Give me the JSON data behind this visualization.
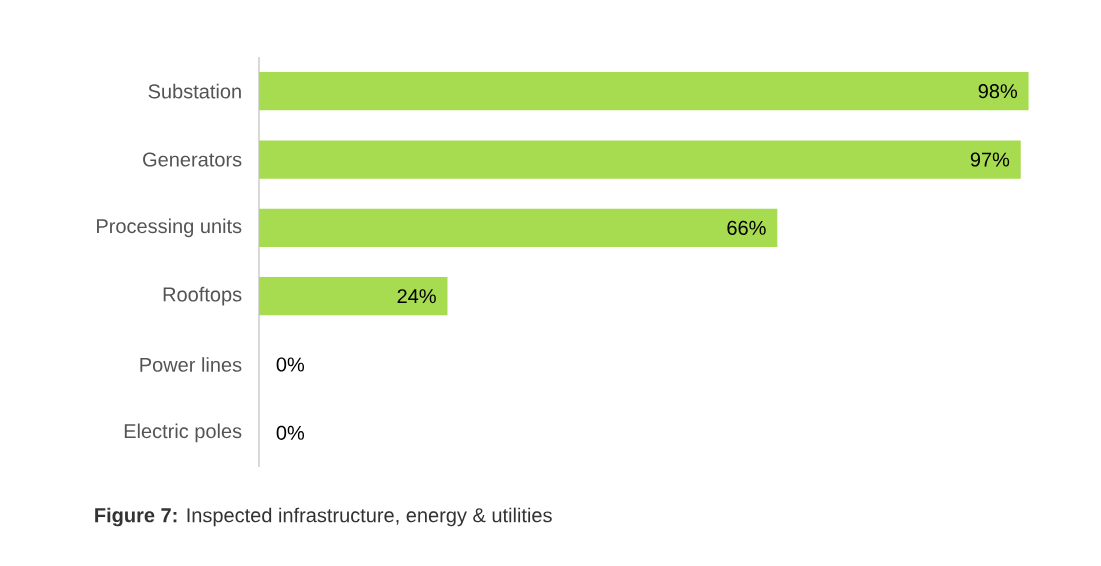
{
  "chart_data": {
    "type": "bar",
    "orientation": "horizontal",
    "categories": [
      "Substation",
      "Generators",
      "Processing units",
      "Rooftops",
      "Power lines",
      "Electric poles"
    ],
    "values": [
      98,
      97,
      66,
      24,
      0,
      0
    ],
    "value_labels": [
      "98%",
      "97%",
      "66%",
      "24%",
      "0%",
      "0%"
    ],
    "color": "#a8dc50",
    "annotations": [
      "**Figure 7:** Inspected infrastructure, energy & utilities"
    ]
  }
}
